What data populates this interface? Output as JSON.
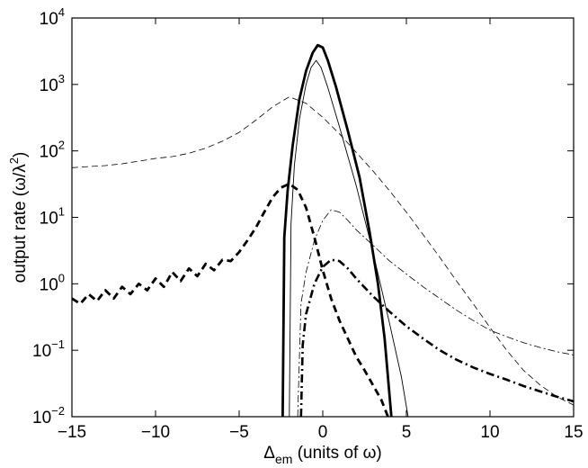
{
  "chart_data": {
    "type": "line",
    "xlabel": {
      "main": "Δ",
      "sub": "em",
      "rest": " (units of ω)"
    },
    "ylabel": {
      "main": "output rate (ω/λ",
      "sup": "2",
      "end": ")"
    },
    "xlim": [
      -15,
      15
    ],
    "ylim": [
      0.01,
      10000
    ],
    "yscale": "log",
    "grid": false,
    "legend": "none",
    "x_ticks": [
      -15,
      -10,
      -5,
      0,
      5,
      10,
      15
    ],
    "x_tick_labels": [
      "−15",
      "−10",
      "−5",
      "0",
      "5",
      "10",
      "15"
    ],
    "y_ticks": [
      {
        "value": 0.01,
        "base": "10",
        "exp": "−2"
      },
      {
        "value": 0.1,
        "base": "10",
        "exp": "−1"
      },
      {
        "value": 1,
        "base": "10",
        "exp": "0"
      },
      {
        "value": 10,
        "base": "10",
        "exp": "1"
      },
      {
        "value": 100,
        "base": "10",
        "exp": "2"
      },
      {
        "value": 1000,
        "base": "10",
        "exp": "3"
      },
      {
        "value": 10000,
        "base": "10",
        "exp": "4"
      }
    ],
    "series": [
      {
        "style": "thin-dashed",
        "points": [
          [
            -15,
            56
          ],
          [
            -14,
            58
          ],
          [
            -13,
            60
          ],
          [
            -12,
            64
          ],
          [
            -11,
            70
          ],
          [
            -10,
            77
          ],
          [
            -9,
            82
          ],
          [
            -8,
            92
          ],
          [
            -7,
            110
          ],
          [
            -6,
            140
          ],
          [
            -5,
            190
          ],
          [
            -4,
            290
          ],
          [
            -3,
            460
          ],
          [
            -2,
            650
          ],
          [
            -1,
            520
          ],
          [
            0,
            320
          ],
          [
            1,
            180
          ],
          [
            2,
            95
          ],
          [
            3,
            50
          ],
          [
            4,
            25
          ],
          [
            5,
            12
          ],
          [
            6,
            5.5
          ],
          [
            7,
            2.5
          ],
          [
            8,
            1.1
          ],
          [
            9,
            0.5
          ],
          [
            10,
            0.22
          ],
          [
            11,
            0.1
          ],
          [
            12,
            0.05
          ],
          [
            13,
            0.03
          ],
          [
            14,
            0.02
          ],
          [
            15,
            0.015
          ]
        ]
      },
      {
        "style": "thick-dashed",
        "points": [
          [
            -15,
            0.6
          ],
          [
            -14.5,
            0.5
          ],
          [
            -14,
            0.7
          ],
          [
            -13.5,
            0.55
          ],
          [
            -13,
            0.8
          ],
          [
            -12.5,
            0.6
          ],
          [
            -12,
            0.9
          ],
          [
            -11.5,
            0.7
          ],
          [
            -11,
            1.0
          ],
          [
            -10.5,
            0.8
          ],
          [
            -10,
            1.2
          ],
          [
            -9.5,
            0.9
          ],
          [
            -9,
            1.5
          ],
          [
            -8.5,
            1.1
          ],
          [
            -8,
            1.7
          ],
          [
            -7.5,
            1.3
          ],
          [
            -7,
            2.0
          ],
          [
            -6.5,
            1.6
          ],
          [
            -6,
            2.3
          ],
          [
            -5.5,
            2.2
          ],
          [
            -5,
            3.0
          ],
          [
            -4.5,
            4.5
          ],
          [
            -4,
            7
          ],
          [
            -3.5,
            12
          ],
          [
            -3,
            20
          ],
          [
            -2.5,
            28
          ],
          [
            -2,
            32
          ],
          [
            -1.5,
            26
          ],
          [
            -1,
            14
          ],
          [
            -0.5,
            5
          ],
          [
            0,
            1.6
          ],
          [
            0.5,
            0.6
          ],
          [
            1,
            0.28
          ],
          [
            1.5,
            0.15
          ],
          [
            2,
            0.08
          ],
          [
            2.5,
            0.05
          ],
          [
            3,
            0.03
          ],
          [
            3.5,
            0.018
          ],
          [
            3.9,
            0.01
          ]
        ]
      },
      {
        "style": "thick-solid",
        "points": [
          [
            -2.4,
            0.01
          ],
          [
            -2.3,
            5
          ],
          [
            -2.1,
            25
          ],
          [
            -1.8,
            120
          ],
          [
            -1.4,
            600
          ],
          [
            -1,
            1600
          ],
          [
            -0.6,
            3000
          ],
          [
            -0.3,
            3900
          ],
          [
            0,
            3600
          ],
          [
            0.3,
            2300
          ],
          [
            0.8,
            900
          ],
          [
            1.5,
            200
          ],
          [
            2.2,
            40
          ],
          [
            2.8,
            6
          ],
          [
            3.3,
            1
          ],
          [
            3.7,
            0.15
          ],
          [
            4.1,
            0.01
          ]
        ]
      },
      {
        "style": "thin-solid",
        "points": [
          [
            -2,
            0.01
          ],
          [
            -1.9,
            8
          ],
          [
            -1.7,
            60
          ],
          [
            -1.4,
            300
          ],
          [
            -1,
            1000
          ],
          [
            -0.7,
            1800
          ],
          [
            -0.4,
            2300
          ],
          [
            -0.1,
            1800
          ],
          [
            0.3,
            900
          ],
          [
            1,
            230
          ],
          [
            2,
            30
          ],
          [
            3,
            3
          ],
          [
            4,
            0.25
          ],
          [
            4.7,
            0.04
          ],
          [
            5.1,
            0.01
          ]
        ]
      },
      {
        "style": "thin-dashdot",
        "points": [
          [
            -1.5,
            0.01
          ],
          [
            -1.3,
            0.5
          ],
          [
            -1,
            1.5
          ],
          [
            -0.5,
            4.5
          ],
          [
            0,
            9
          ],
          [
            0.5,
            13
          ],
          [
            1,
            12
          ],
          [
            1.5,
            9
          ],
          [
            2,
            6.5
          ],
          [
            3,
            3.8
          ],
          [
            4,
            2.2
          ],
          [
            5,
            1.4
          ],
          [
            6,
            0.9
          ],
          [
            7,
            0.6
          ],
          [
            8,
            0.4
          ],
          [
            9,
            0.28
          ],
          [
            10,
            0.2
          ],
          [
            11,
            0.16
          ],
          [
            12,
            0.13
          ],
          [
            13,
            0.11
          ],
          [
            14,
            0.095
          ],
          [
            15,
            0.085
          ]
        ]
      },
      {
        "style": "thick-dashdot",
        "points": [
          [
            -1.3,
            0.01
          ],
          [
            -1.2,
            0.12
          ],
          [
            -1,
            0.35
          ],
          [
            -0.5,
            1.0
          ],
          [
            0,
            1.8
          ],
          [
            0.5,
            2.3
          ],
          [
            1,
            2.2
          ],
          [
            1.5,
            1.7
          ],
          [
            2,
            1.2
          ],
          [
            3,
            0.65
          ],
          [
            4,
            0.38
          ],
          [
            5,
            0.23
          ],
          [
            6,
            0.15
          ],
          [
            7,
            0.1
          ],
          [
            8,
            0.072
          ],
          [
            9,
            0.055
          ],
          [
            10,
            0.044
          ],
          [
            11,
            0.036
          ],
          [
            12,
            0.029
          ],
          [
            13,
            0.024
          ],
          [
            14,
            0.02
          ],
          [
            15,
            0.017
          ]
        ]
      }
    ]
  }
}
